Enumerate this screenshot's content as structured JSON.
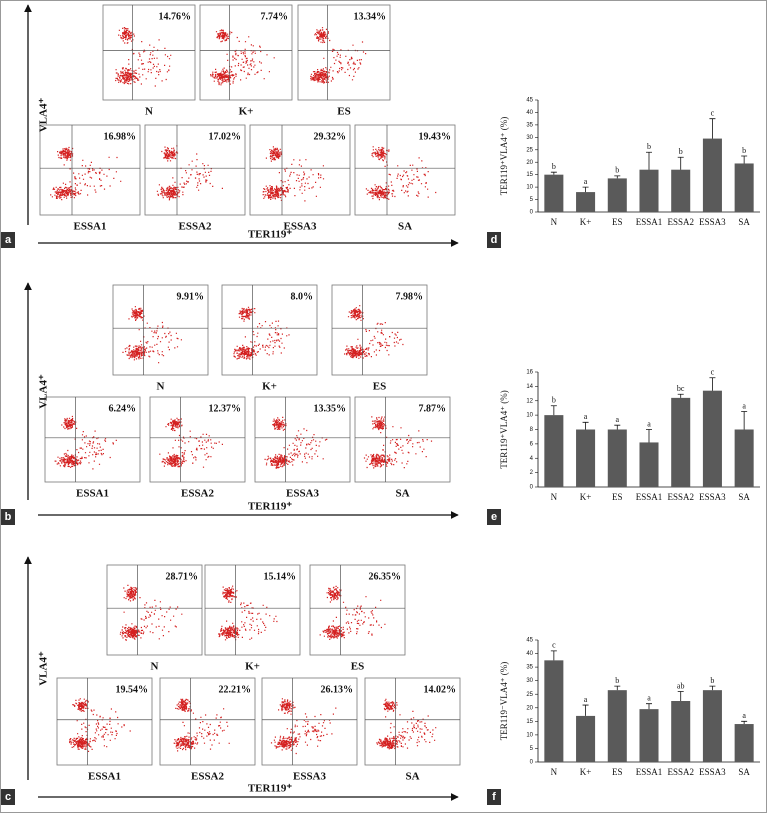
{
  "flow_panels": [
    {
      "letter": "a",
      "y_label": "VLA4⁺",
      "x_label": "TER119⁺",
      "plots": [
        {
          "label": "N",
          "percent": "14.76%"
        },
        {
          "label": "K+",
          "percent": "7.74%"
        },
        {
          "label": "ES",
          "percent": "13.34%"
        },
        {
          "label": "ESSA1",
          "percent": "16.98%"
        },
        {
          "label": "ESSA2",
          "percent": "17.02%"
        },
        {
          "label": "ESSA3",
          "percent": "29.32%"
        },
        {
          "label": "SA",
          "percent": "19.43%"
        }
      ]
    },
    {
      "letter": "b",
      "y_label": "VLA4⁺",
      "x_label": "TER119⁺",
      "plots": [
        {
          "label": "N",
          "percent": "9.91%"
        },
        {
          "label": "K+",
          "percent": "8.0%"
        },
        {
          "label": "ES",
          "percent": "7.98%"
        },
        {
          "label": "ESSA1",
          "percent": "6.24%"
        },
        {
          "label": "ESSA2",
          "percent": "12.37%"
        },
        {
          "label": "ESSA3",
          "percent": "13.35%"
        },
        {
          "label": "SA",
          "percent": "7.87%"
        }
      ]
    },
    {
      "letter": "c",
      "y_label": "VLA4⁺",
      "x_label": "TER119⁺",
      "plots": [
        {
          "label": "N",
          "percent": "28.71%"
        },
        {
          "label": "K+",
          "percent": "15.14%"
        },
        {
          "label": "ES",
          "percent": "26.35%"
        },
        {
          "label": "ESSA1",
          "percent": "19.54%"
        },
        {
          "label": "ESSA2",
          "percent": "22.21%"
        },
        {
          "label": "ESSA3",
          "percent": "26.13%"
        },
        {
          "label": "SA",
          "percent": "14.02%"
        }
      ]
    }
  ],
  "chart_data": [
    {
      "type": "bar",
      "label": "d",
      "y_label": "TER119⁺VLA4⁺ (%)",
      "color": "#5a5a5a",
      "categories": [
        "N",
        "K+",
        "ES",
        "ESSA1",
        "ESSA2",
        "ESSA3",
        "SA"
      ],
      "values": [
        15,
        8,
        13.5,
        17,
        17,
        29.5,
        19.5
      ],
      "errors": [
        1,
        2,
        1,
        7,
        5,
        8,
        3
      ],
      "letters": [
        "b",
        "a",
        "b",
        "b",
        "b",
        "c",
        "b"
      ],
      "ylim": [
        0,
        45
      ],
      "yticks": [
        0,
        5,
        10,
        15,
        20,
        25,
        30,
        35,
        40,
        45
      ]
    },
    {
      "type": "bar",
      "label": "e",
      "y_label": "TER119⁺VLA4⁺ (%)",
      "color": "#5a5a5a",
      "categories": [
        "N",
        "K+",
        "ES",
        "ESSA1",
        "ESSA2",
        "ESSA3",
        "SA"
      ],
      "values": [
        10,
        8,
        8,
        6.2,
        12.4,
        13.4,
        8
      ],
      "errors": [
        1.3,
        1,
        0.6,
        1.8,
        0.5,
        1.8,
        2.5
      ],
      "letters": [
        "b",
        "a",
        "a",
        "a",
        "bc",
        "c",
        "a"
      ],
      "ylim": [
        0,
        16
      ],
      "yticks": [
        0,
        2,
        4,
        6,
        8,
        10,
        12,
        14,
        16
      ]
    },
    {
      "type": "bar",
      "label": "f",
      "y_label": "TER119⁻VLA4⁺ (%)",
      "color": "#5a5a5a",
      "categories": [
        "N",
        "K+",
        "ES",
        "ESSA1",
        "ESSA2",
        "ESSA3",
        "SA"
      ],
      "values": [
        37.5,
        17,
        26.5,
        19.5,
        22.5,
        26.5,
        14
      ],
      "errors": [
        3.5,
        4,
        1.5,
        2,
        3.5,
        1.5,
        1
      ],
      "letters": [
        "c",
        "a",
        "b",
        "a",
        "ab",
        "b",
        "a"
      ],
      "ylim": [
        0,
        45
      ],
      "yticks": [
        0,
        5,
        10,
        15,
        20,
        25,
        30,
        35,
        40,
        45
      ]
    }
  ]
}
